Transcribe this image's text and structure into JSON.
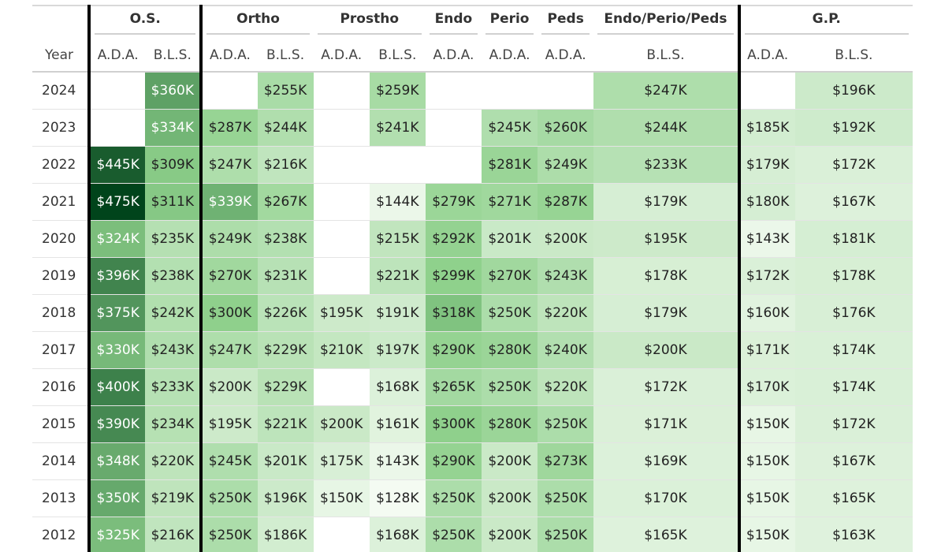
{
  "chart_data": {
    "type": "table",
    "color_scale": {
      "low": "#f4fbf2",
      "mid": "#8ed08b",
      "high": "#00441b",
      "min": 128,
      "max": 475,
      "text_dark": "#222222",
      "text_light": "#ffffff"
    },
    "year_label": "Year",
    "groups": [
      {
        "name": "O.S.",
        "span": 2
      },
      {
        "name": "Ortho",
        "span": 2
      },
      {
        "name": "Prostho",
        "span": 2
      },
      {
        "name": "Endo",
        "span": 1
      },
      {
        "name": "Perio",
        "span": 1
      },
      {
        "name": "Peds",
        "span": 1
      },
      {
        "name": "Endo/Perio/Peds",
        "span": 1
      },
      {
        "name": "G.P.",
        "span": 2
      }
    ],
    "columns": [
      "A.D.A.",
      "B.L.S.",
      "A.D.A.",
      "B.L.S.",
      "A.D.A.",
      "B.L.S.",
      "A.D.A.",
      "A.D.A.",
      "A.D.A.",
      "B.L.S.",
      "A.D.A.",
      "B.L.S."
    ],
    "rows": [
      {
        "year": "2024",
        "values": [
          null,
          360,
          null,
          255,
          null,
          259,
          null,
          null,
          null,
          247,
          null,
          196
        ]
      },
      {
        "year": "2023",
        "values": [
          null,
          334,
          287,
          244,
          null,
          241,
          null,
          245,
          260,
          244,
          185,
          192
        ]
      },
      {
        "year": "2022",
        "values": [
          445,
          309,
          247,
          216,
          null,
          null,
          null,
          281,
          249,
          233,
          179,
          172
        ]
      },
      {
        "year": "2021",
        "values": [
          475,
          311,
          339,
          267,
          null,
          144,
          279,
          271,
          287,
          179,
          180,
          167
        ]
      },
      {
        "year": "2020",
        "values": [
          324,
          235,
          249,
          238,
          null,
          215,
          292,
          201,
          200,
          195,
          143,
          181
        ]
      },
      {
        "year": "2019",
        "values": [
          396,
          238,
          270,
          231,
          null,
          221,
          299,
          270,
          243,
          178,
          172,
          178
        ]
      },
      {
        "year": "2018",
        "values": [
          375,
          242,
          300,
          226,
          195,
          191,
          318,
          250,
          220,
          179,
          160,
          176
        ]
      },
      {
        "year": "2017",
        "values": [
          330,
          243,
          247,
          229,
          210,
          197,
          290,
          280,
          240,
          200,
          171,
          174
        ]
      },
      {
        "year": "2016",
        "values": [
          400,
          233,
          200,
          229,
          null,
          168,
          265,
          250,
          220,
          172,
          170,
          174
        ]
      },
      {
        "year": "2015",
        "values": [
          390,
          234,
          195,
          221,
          200,
          161,
          300,
          280,
          250,
          171,
          150,
          172
        ]
      },
      {
        "year": "2014",
        "values": [
          348,
          220,
          245,
          201,
          175,
          143,
          290,
          200,
          273,
          169,
          150,
          167
        ]
      },
      {
        "year": "2013",
        "values": [
          350,
          219,
          250,
          196,
          150,
          128,
          250,
          200,
          250,
          170,
          150,
          165
        ]
      },
      {
        "year": "2012",
        "values": [
          325,
          216,
          250,
          186,
          null,
          168,
          250,
          200,
          250,
          165,
          150,
          163
        ]
      }
    ]
  }
}
